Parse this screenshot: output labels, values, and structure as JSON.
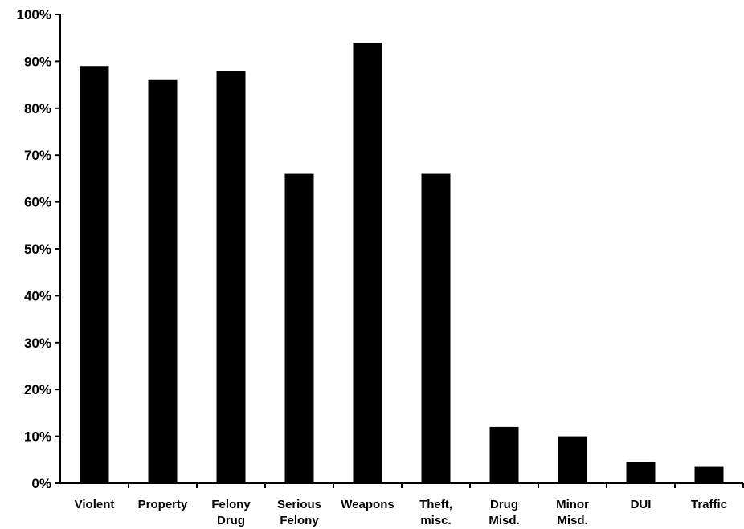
{
  "chart_data": {
    "type": "bar",
    "title": "",
    "xlabel": "",
    "ylabel": "",
    "ylim": [
      0,
      100
    ],
    "y_ticks": [
      "0%",
      "10%",
      "20%",
      "30%",
      "40%",
      "50%",
      "60%",
      "70%",
      "80%",
      "90%",
      "100%"
    ],
    "grid": false,
    "legend": "none",
    "bar_color": "#000000",
    "categories": [
      [
        "Violent"
      ],
      [
        "Property"
      ],
      [
        "Felony",
        "Drug"
      ],
      [
        "Serious",
        "Felony"
      ],
      [
        "Weapons"
      ],
      [
        "Theft,",
        "misc."
      ],
      [
        "Drug",
        "Misd."
      ],
      [
        "Minor",
        "Misd."
      ],
      [
        "DUI"
      ],
      [
        "Traffic"
      ]
    ],
    "values": [
      89,
      86,
      88,
      66,
      94,
      66,
      12,
      10,
      4.5,
      3.5
    ]
  }
}
